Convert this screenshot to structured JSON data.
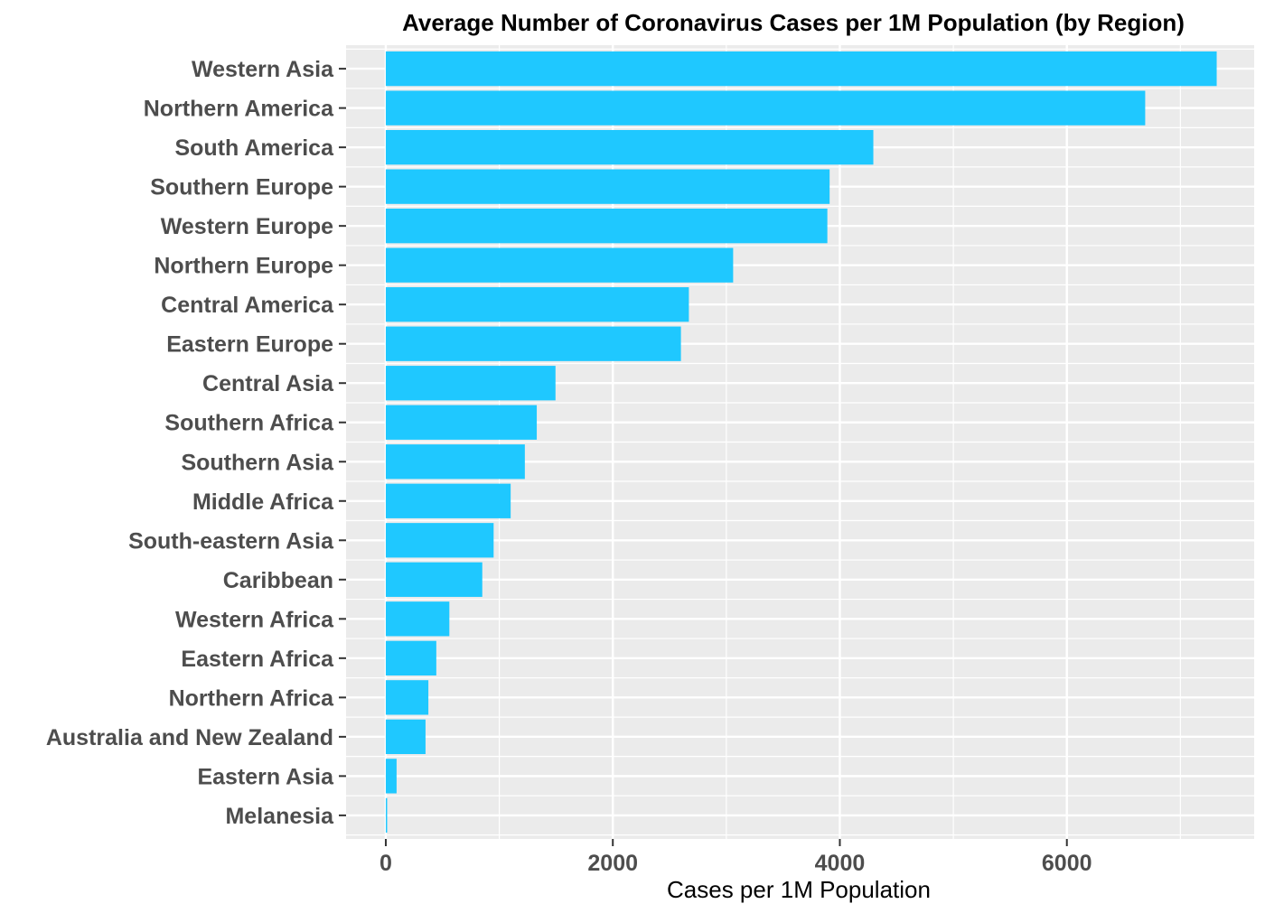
{
  "chart_data": {
    "type": "bar",
    "orientation": "horizontal",
    "title": "Average Number of Coronavirus Cases per 1M Population (by Region)",
    "xlabel": "Cases per 1M Population",
    "ylabel": "",
    "categories": [
      "Western Asia",
      "Northern America",
      "South America",
      "Southern Europe",
      "Western Europe",
      "Northern Europe",
      "Central America",
      "Eastern Europe",
      "Central Asia",
      "Southern Africa",
      "Southern Asia",
      "Middle Africa",
      "South-eastern Asia",
      "Caribbean",
      "Western Africa",
      "Eastern Africa",
      "Northern Africa",
      "Australia and New Zealand",
      "Eastern Asia",
      "Melanesia"
    ],
    "values": [
      7320,
      6690,
      4295,
      3910,
      3890,
      3060,
      2670,
      2600,
      1495,
      1330,
      1225,
      1100,
      950,
      850,
      560,
      445,
      375,
      350,
      95,
      10
    ],
    "xlim": [
      -350,
      7650
    ],
    "xticks": [
      0,
      2000,
      4000,
      6000
    ],
    "xtick_labels": [
      "0",
      "2000",
      "4000",
      "6000"
    ],
    "grid": true,
    "legend": "none",
    "colors": {
      "bar": "#1fc8ff",
      "panel_background": "#ebebeb",
      "grid": "#ffffff",
      "label_text": "#4d4d4d",
      "title_text": "#000000"
    }
  }
}
